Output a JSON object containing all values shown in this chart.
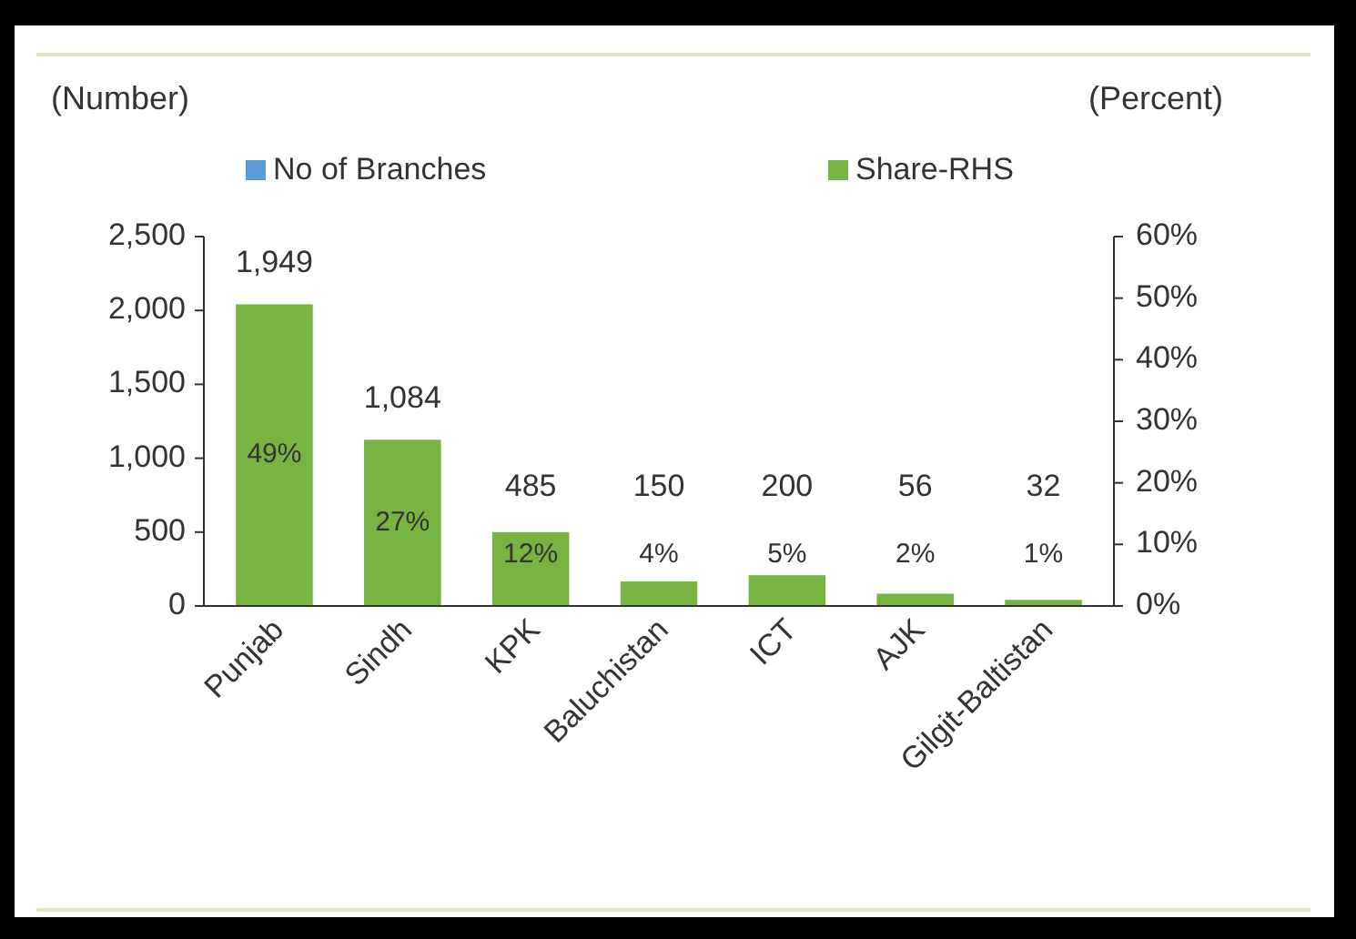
{
  "chart_data": {
    "type": "bar",
    "ylabel": "(Number)",
    "y2label": "(Percent)",
    "categories": [
      "Punjab",
      "Sindh",
      "KPK",
      "Baluchistan",
      "ICT",
      "AJK",
      "Gilgit-Baltistan"
    ],
    "series": [
      {
        "name": "No of Branches",
        "color": "#5b9bd5",
        "values": [
          null,
          null,
          null,
          null,
          null,
          null,
          null
        ]
      },
      {
        "name": "Share-RHS",
        "color": "#77b442",
        "axis": "y2",
        "values": [
          49,
          27,
          12,
          4,
          5,
          2,
          1
        ],
        "value_labels": [
          "49%",
          "27%",
          "12%",
          "4%",
          "5%",
          "2%",
          "1%"
        ]
      }
    ],
    "annotations": [
      "1,949",
      "1,084",
      "485",
      "150",
      "200",
      "56",
      "32"
    ],
    "ylim": [
      0,
      2500
    ],
    "yticks": [
      0,
      500,
      {
        "value": 1000,
        "label": "1,000"
      },
      {
        "value": 1500,
        "label": "1,500"
      },
      {
        "value": 2000,
        "label": "2,000"
      },
      {
        "value": 2500,
        "label": "2,500"
      }
    ],
    "y2lim": [
      0,
      60
    ],
    "y2ticks": [
      {
        "value": 0,
        "label": "0%"
      },
      {
        "value": 10,
        "label": "10%"
      },
      {
        "value": 20,
        "label": "20%"
      },
      {
        "value": 30,
        "label": "30%"
      },
      {
        "value": 40,
        "label": "40%"
      },
      {
        "value": 50,
        "label": "50%"
      },
      {
        "value": 60,
        "label": "60%"
      }
    ],
    "grid": false,
    "legend": "top"
  }
}
